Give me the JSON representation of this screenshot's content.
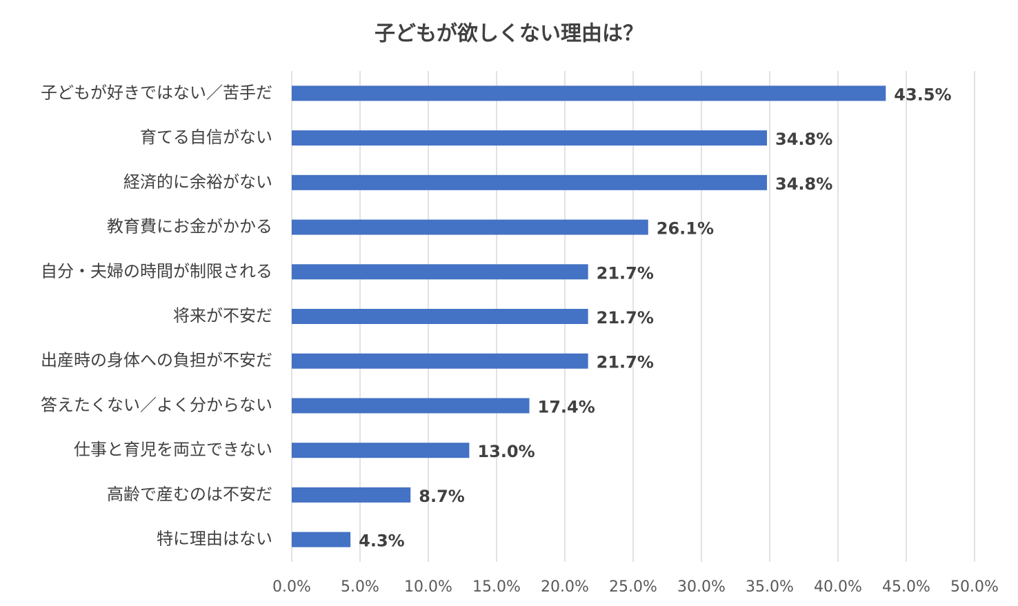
{
  "chart_data": {
    "type": "bar",
    "orientation": "horizontal",
    "title": "子どもが欲しくない理由は？",
    "categories": [
      "子どもが好きではない／苦手だ",
      "育てる自信がない",
      "経済的に余裕がない",
      "教育費にお金がかかる",
      "自分・夫婦の時間が制限される",
      "将来が不安だ",
      "出産時の身体への負担が不安だ",
      "答えたくない／よく分からない",
      "仕事と育児を両立できない",
      "高齢で産むのは不安だ",
      "特に理由はない"
    ],
    "values": [
      43.5,
      34.8,
      34.8,
      26.1,
      21.7,
      21.7,
      21.7,
      17.4,
      13.0,
      8.7,
      4.3
    ],
    "value_labels": [
      "43.5%",
      "34.8%",
      "34.8%",
      "26.1%",
      "21.7%",
      "21.7%",
      "21.7%",
      "17.4%",
      "13.0%",
      "8.7%",
      "4.3%"
    ],
    "color": "#4472c4",
    "xlim": [
      0,
      50
    ],
    "xticks": [
      {
        "value": 0,
        "label": "0.0%"
      },
      {
        "value": 5,
        "label": "5.0%"
      },
      {
        "value": 10,
        "label": "10.0%"
      },
      {
        "value": 15,
        "label": "15.0%"
      },
      {
        "value": 20,
        "label": "20.0%"
      },
      {
        "value": 25,
        "label": "25.0%"
      },
      {
        "value": 30,
        "label": "30.0%"
      },
      {
        "value": 35,
        "label": "35.0%"
      },
      {
        "value": 40,
        "label": "40.0%"
      },
      {
        "value": 45,
        "label": "45.0%"
      },
      {
        "value": 50,
        "label": "50.0%"
      }
    ],
    "grid": true
  }
}
